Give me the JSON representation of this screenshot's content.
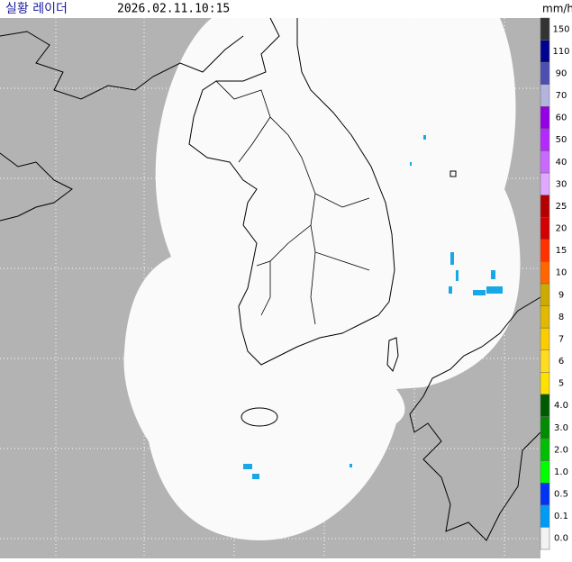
{
  "header": {
    "title": "실황 레이더",
    "time": "2026.02.11.10:15"
  },
  "legend": {
    "unit": "mm/h",
    "items": [
      {
        "label": "150",
        "color": "#333333"
      },
      {
        "label": "110",
        "color": "#000390"
      },
      {
        "label": "90",
        "color": "#4c4eb1"
      },
      {
        "label": "70",
        "color": "#b3b4de"
      },
      {
        "label": "60",
        "color": "#9300e4"
      },
      {
        "label": "50",
        "color": "#b329ff"
      },
      {
        "label": "40",
        "color": "#c969ff"
      },
      {
        "label": "30",
        "color": "#e0a9ff"
      },
      {
        "label": "25",
        "color": "#b40000"
      },
      {
        "label": "20",
        "color": "#d20000"
      },
      {
        "label": "15",
        "color": "#ff3200"
      },
      {
        "label": "10",
        "color": "#ff6600"
      },
      {
        "label": "9",
        "color": "#ccaa00"
      },
      {
        "label": "8",
        "color": "#e0b900"
      },
      {
        "label": "7",
        "color": "#f9cd00"
      },
      {
        "label": "6",
        "color": "#ffdc1f"
      },
      {
        "label": "5",
        "color": "#ffe100"
      },
      {
        "label": "4.0",
        "color": "#005a00"
      },
      {
        "label": "3.0",
        "color": "#008c00"
      },
      {
        "label": "2.0",
        "color": "#00be00"
      },
      {
        "label": "1.0",
        "color": "#00ff00"
      },
      {
        "label": "0.5",
        "color": "#0033f5"
      },
      {
        "label": "0.1",
        "color": "#009bf5"
      },
      {
        "label": "0.0",
        "color": "#f2f2f2"
      }
    ]
  }
}
